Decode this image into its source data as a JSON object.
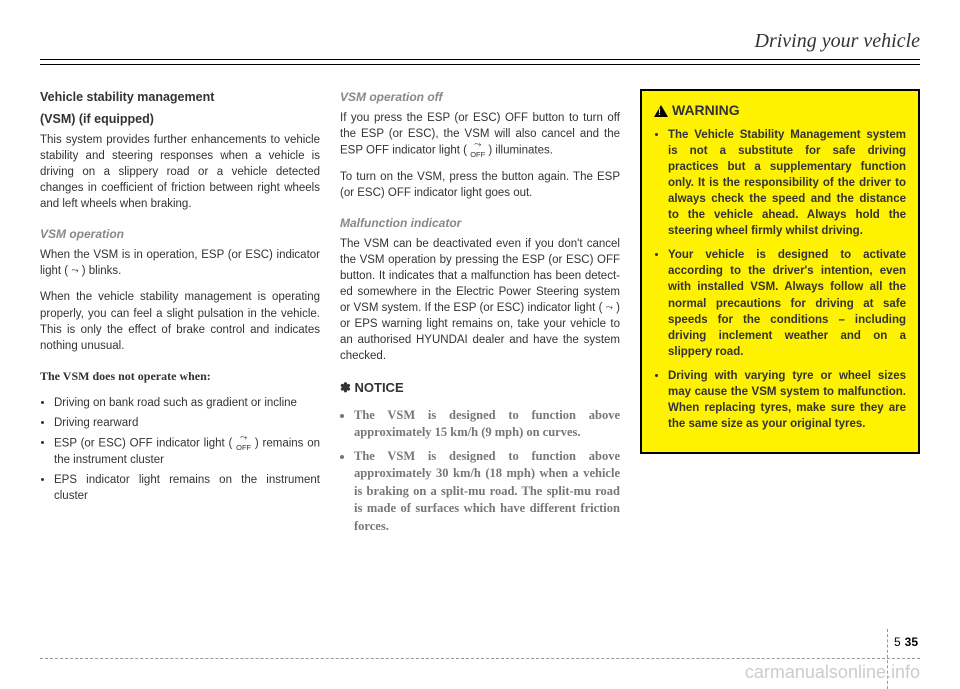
{
  "header": {
    "title": "Driving your vehicle"
  },
  "col1": {
    "h3a": "Vehicle stability management",
    "h3b": "(VSM) (if equipped)",
    "p1": "This system provides further enhance­ments to vehicle stability and steering responses when a vehicle is driving on a slippery road or a vehicle detected changes in coefficient of friction between right wheels and left wheels when brak­ing.",
    "h4a": "VSM operation",
    "p2a": "When the VSM is in operation, ESP (or ESC) indicator light (",
    "p2b": ") blinks.",
    "p3": "When the vehicle stability management is operating properly, you can feel a slight pulsation in the vehicle. This is only the effect of brake control and indicates noth­ing unusual.",
    "serif": "The VSM does not operate when:",
    "li1": "Driving on bank road such as gradient or incline",
    "li2": "Driving rearward",
    "li3a": "ESP (or ESC) OFF indicator light (",
    "li3b": ") remains on the instrument cluster",
    "li4": "EPS indicator light remains on the instrument cluster"
  },
  "col2": {
    "h4a": "VSM operation off",
    "p1a": "If you press the ESP (or ESC) OFF but­ton to turn off the ESP (or ESC), the VSM will also cancel and the ESP OFF indica­tor light (",
    "p1b": ") illuminates.",
    "p2": "To turn on the VSM, press the button again. The ESP (or ESC) OFF indicator light goes out.",
    "h4b": "Malfunction indicator",
    "p3a": "The VSM can be deactivated even if you don't cancel the VSM operation by press­ing the ESP (or ESC) OFF button. It indi­cates that a malfunction has been detect­ed somewhere in the Electric Power Steering system or VSM system. If the ESP (or ESC) indicator light (",
    "p3b": ") or EPS warning light remains on, take your vehi­cle to an authorised HYUNDAI dealer and have the system checked.",
    "notice_head": "✽ NOTICE",
    "n1": "The VSM is designed to function above approximately 15 km/h (9 mph) on curves.",
    "n2": "The VSM is designed to function above approximately 30 km/h (18 mph) when a vehicle is braking on a split-mu road. The split-mu road is made of surfaces which have different friction forces."
  },
  "col3": {
    "warn_head": "WARNING",
    "w1": "The Vehicle Stability Management system is not a substitute for safe driving practices but a sup­plementary function only. It is the responsibility of the driver to always check the speed and the distance to the vehicle ahead. Always hold the steering wheel firmly whilst driving.",
    "w2": "Your vehicle is designed to acti­vate according to the driver's intention, even with installed VSM. Always follow all the normal precautions for driving at safe speeds for the conditions – including driving inclement weather and on a slippery road.",
    "w3": "Driving with varying tyre or wheel sizes may cause the VSM system to malfunction. When replacing tyres, make sure they are the same size as your original tyres."
  },
  "footer": {
    "chapter": "5",
    "page": "35",
    "watermark": "carmanualsonline.info"
  },
  "icon_esc": "⤳\nOFF"
}
